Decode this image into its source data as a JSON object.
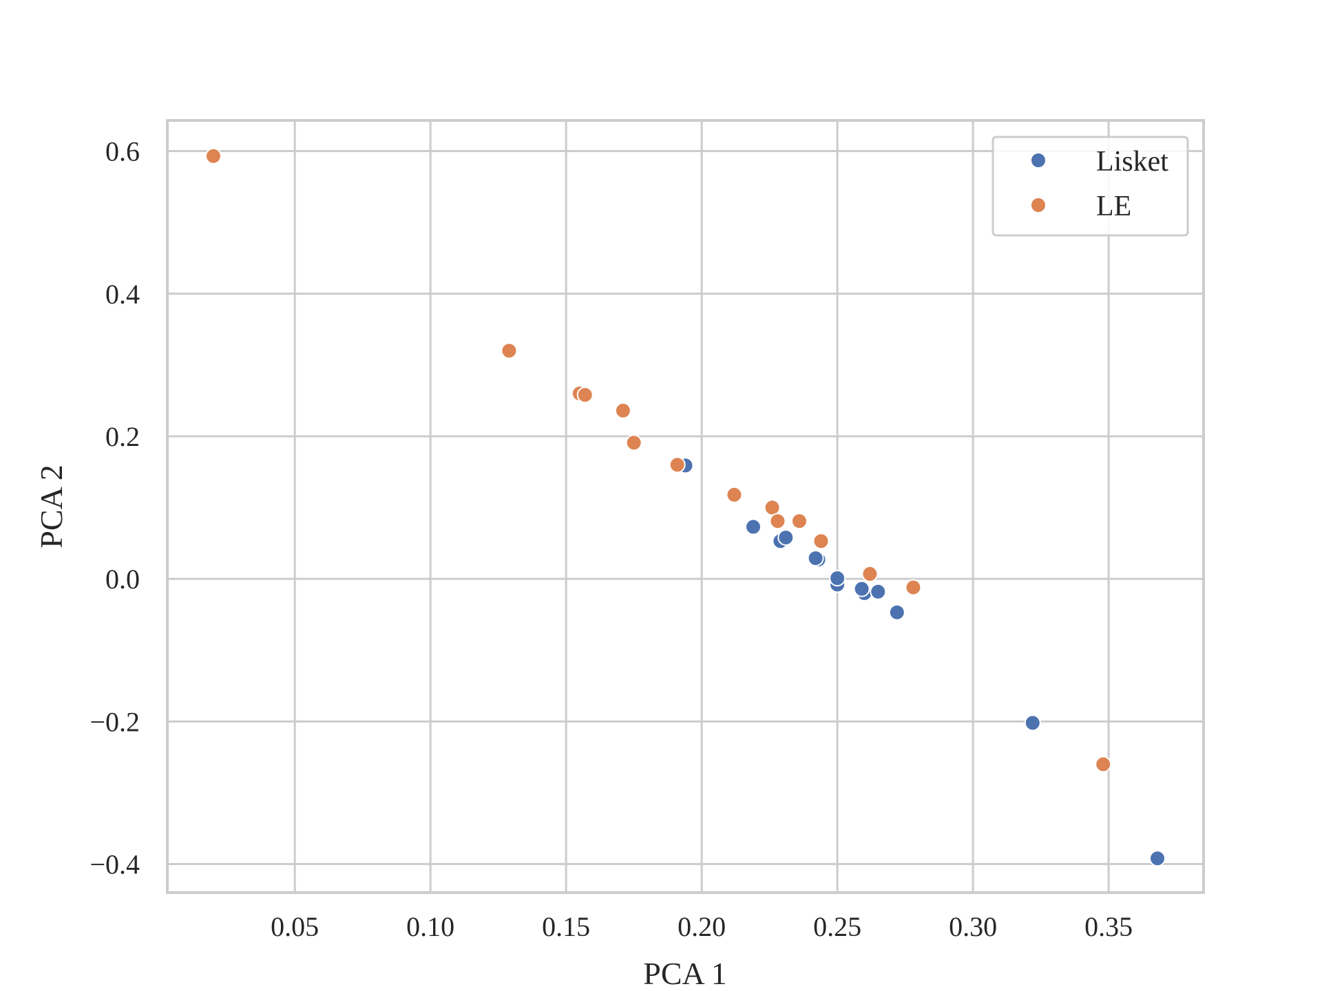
{
  "chart_data": {
    "type": "scatter",
    "title": "",
    "xlabel": "PCA 1",
    "ylabel": "PCA 2",
    "xlim": [
      0.003,
      0.385
    ],
    "ylim": [
      -0.44,
      0.643
    ],
    "xticks": [
      0.05,
      0.1,
      0.15,
      0.2,
      0.25,
      0.3,
      0.35
    ],
    "xtick_labels": [
      "0.05",
      "0.10",
      "0.15",
      "0.20",
      "0.25",
      "0.30",
      "0.35"
    ],
    "yticks": [
      -0.4,
      -0.2,
      0.0,
      0.2,
      0.4,
      0.6
    ],
    "ytick_labels": [
      "−0.4",
      "−0.2",
      "0.0",
      "0.2",
      "0.4",
      "0.6"
    ],
    "grid": true,
    "legend_position": "top-right",
    "series": [
      {
        "name": "Lisket",
        "color": "#4c72b0",
        "points": [
          {
            "x": 0.194,
            "y": 0.159
          },
          {
            "x": 0.219,
            "y": 0.073
          },
          {
            "x": 0.229,
            "y": 0.053
          },
          {
            "x": 0.231,
            "y": 0.058
          },
          {
            "x": 0.243,
            "y": 0.027
          },
          {
            "x": 0.242,
            "y": 0.029
          },
          {
            "x": 0.25,
            "y": -0.008
          },
          {
            "x": 0.25,
            "y": 0.001
          },
          {
            "x": 0.26,
            "y": -0.02
          },
          {
            "x": 0.259,
            "y": -0.014
          },
          {
            "x": 0.265,
            "y": -0.018
          },
          {
            "x": 0.272,
            "y": -0.047
          },
          {
            "x": 0.322,
            "y": -0.202
          },
          {
            "x": 0.368,
            "y": -0.392
          }
        ]
      },
      {
        "name": "LE",
        "color": "#dd8452",
        "points": [
          {
            "x": 0.02,
            "y": 0.593
          },
          {
            "x": 0.129,
            "y": 0.32
          },
          {
            "x": 0.155,
            "y": 0.26
          },
          {
            "x": 0.157,
            "y": 0.258
          },
          {
            "x": 0.171,
            "y": 0.236
          },
          {
            "x": 0.175,
            "y": 0.191
          },
          {
            "x": 0.191,
            "y": 0.16
          },
          {
            "x": 0.212,
            "y": 0.118
          },
          {
            "x": 0.226,
            "y": 0.1
          },
          {
            "x": 0.228,
            "y": 0.081
          },
          {
            "x": 0.236,
            "y": 0.081
          },
          {
            "x": 0.244,
            "y": 0.053
          },
          {
            "x": 0.262,
            "y": 0.007
          },
          {
            "x": 0.278,
            "y": -0.012
          },
          {
            "x": 0.348,
            "y": -0.26
          }
        ]
      }
    ]
  }
}
